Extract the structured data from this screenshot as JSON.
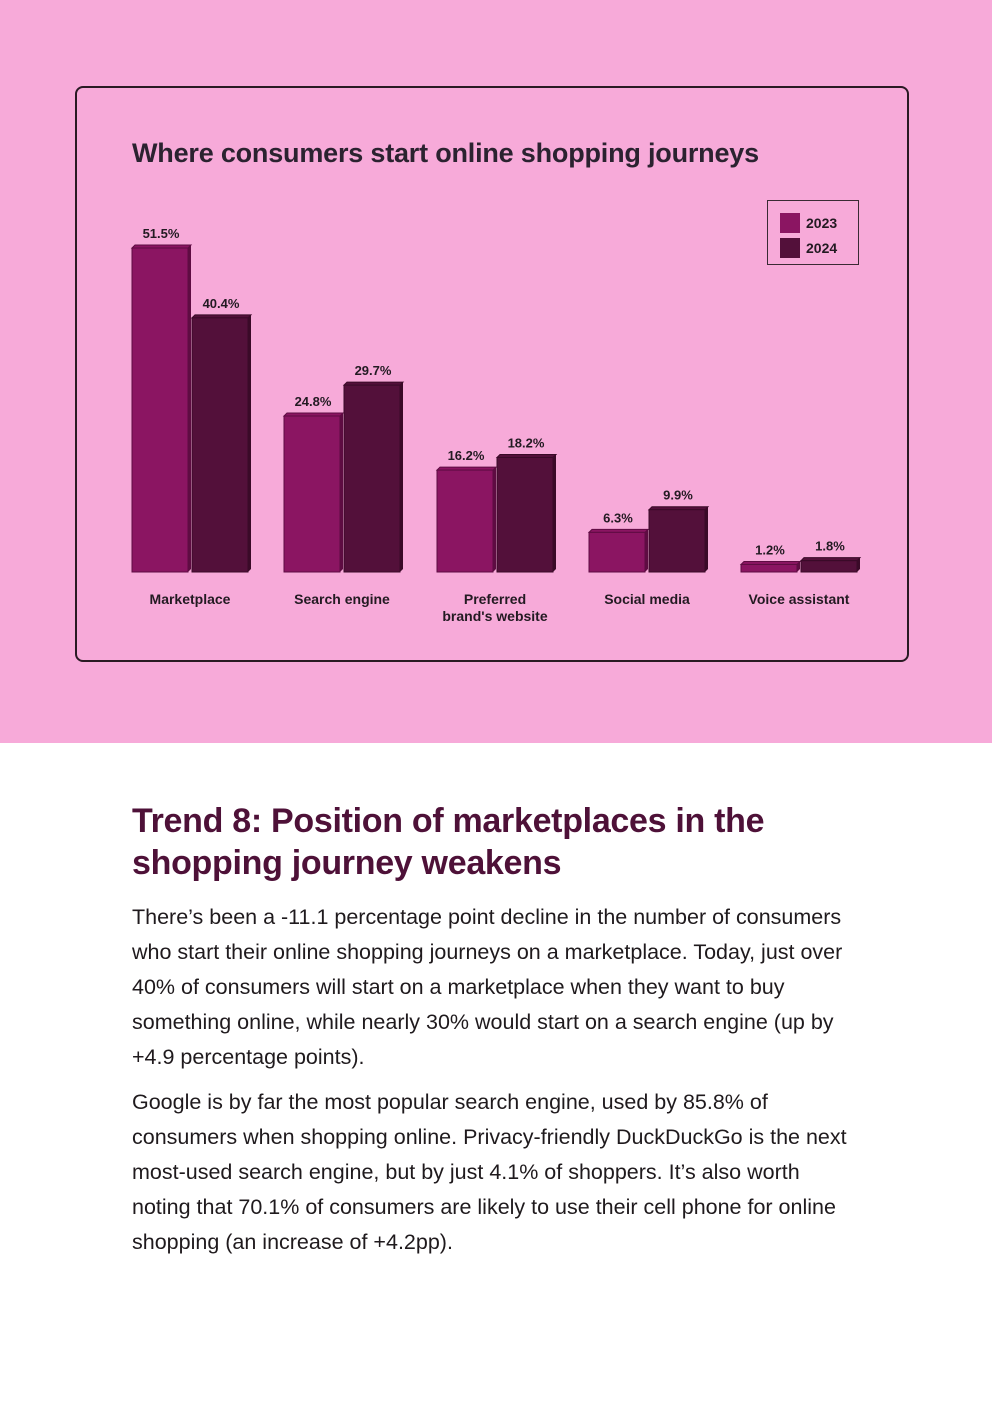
{
  "chart_data": {
    "type": "bar",
    "title": "Where consumers start online shopping journeys",
    "categories": [
      "Marketplace",
      "Search engine",
      "Preferred\nbrand's website",
      "Social media",
      "Voice assistant"
    ],
    "series": [
      {
        "name": "2023",
        "values": [
          51.5,
          24.8,
          16.2,
          6.3,
          1.2
        ],
        "labels": [
          "51.5%",
          "24.8%",
          "16.2%",
          "6.3%",
          "1.2%"
        ]
      },
      {
        "name": "2024",
        "values": [
          40.4,
          29.7,
          18.2,
          9.9,
          1.8
        ],
        "labels": [
          "40.4%",
          "29.7%",
          "18.2%",
          "9.9%",
          "1.8%"
        ]
      }
    ],
    "ylim": [
      0,
      51.5
    ],
    "legend_position": "top-right",
    "grid": false,
    "colors": {
      "2023": "#8b1562",
      "2024": "#53103a"
    }
  },
  "colors": {
    "background": "#f7aad9",
    "heading": "#4e1138"
  },
  "article": {
    "heading": "Trend 8: Position of marketplaces in the shopping journey weakens",
    "paragraphs": [
      "There’s been a -11.1 percentage point decline in the number of consumers who start their online shopping journeys on a marketplace. Today, just over 40% of consumers will start on a marketplace when they want to buy something online, while nearly 30% would start on a search engine (up by +4.9 percentage points).",
      "Google is by far the most popular search engine, used by 85.8% of consumers when shopping online. Privacy-friendly DuckDuckGo is the next most-used search engine, but by just 4.1% of shoppers. It’s also worth noting that 70.1% of consumers are likely to use their cell phone for online shopping (an increase of +4.2pp)."
    ]
  }
}
